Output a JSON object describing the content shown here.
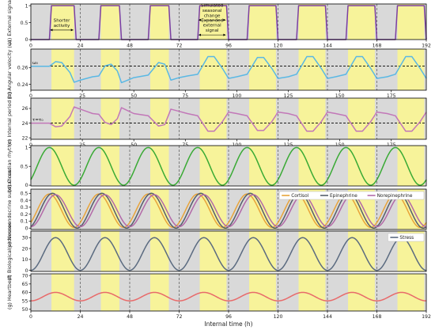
{
  "chart_data": [
    {
      "id": "a",
      "type": "line",
      "ylabel": "(a) External signal",
      "yticks": [
        0,
        0.5,
        1
      ],
      "ylim": [
        0,
        1.05
      ],
      "x_axis": "top",
      "xticks": [
        0,
        24,
        48,
        72,
        96,
        120,
        144,
        168,
        192
      ],
      "series": [
        {
          "values_description": "square wave",
          "color": "#7b3fa0",
          "points": [
            [
              0,
              0
            ],
            [
              9,
              0
            ],
            [
              10,
              1
            ],
            [
              21,
              1
            ],
            [
              22,
              0
            ],
            [
              33,
              0
            ],
            [
              34,
              1
            ],
            [
              43,
              1
            ],
            [
              44,
              0
            ],
            [
              57,
              0
            ],
            [
              58,
              1
            ],
            [
              67,
              1
            ],
            [
              68,
              0
            ],
            [
              81,
              0
            ],
            [
              82,
              1
            ],
            [
              95,
              1
            ],
            [
              96,
              0
            ],
            [
              105,
              0
            ],
            [
              106,
              1
            ],
            [
              119,
              1
            ],
            [
              120,
              0
            ],
            [
              129,
              0
            ],
            [
              130,
              1
            ],
            [
              143,
              1
            ],
            [
              144,
              0
            ],
            [
              153,
              0
            ],
            [
              154,
              1
            ],
            [
              167,
              1
            ],
            [
              168,
              0
            ],
            [
              177,
              0
            ],
            [
              178,
              1
            ],
            [
              191,
              1
            ],
            [
              192,
              0
            ]
          ]
        }
      ],
      "annotations": [
        {
          "text": [
            "Shorter",
            "activity"
          ],
          "x_range": [
            9,
            21
          ],
          "y": 0.45
        },
        {
          "text": [
            "Simulated",
            "seasonal",
            "change"
          ],
          "x_range": [
            81,
            95
          ],
          "y": 0.82
        },
        {
          "text": [
            "Expanded",
            "external",
            "signal"
          ],
          "x_range": [
            81,
            95
          ],
          "y": 0.38
        }
      ]
    },
    {
      "id": "b",
      "type": "line",
      "ylabel": "(b) Angular velocity (ω)",
      "yticks": [
        0.24,
        0.26
      ],
      "ylim": [
        0.233,
        0.282
      ],
      "x_axis": "bottom",
      "xticks": [
        0,
        25,
        50,
        75,
        100,
        125,
        150,
        175
      ],
      "ref_line": {
        "label": "ω₀",
        "value": 0.2617
      },
      "series": [
        {
          "color": "#5ab8e4",
          "points": [
            [
              0,
              0.2615
            ],
            [
              9,
              0.2615
            ],
            [
              12,
              0.267
            ],
            [
              15,
              0.266
            ],
            [
              19,
              0.254
            ],
            [
              21,
              0.2425
            ],
            [
              24,
              0.245
            ],
            [
              27,
              0.247
            ],
            [
              30,
              0.249
            ],
            [
              33,
              0.25
            ],
            [
              36,
              0.262
            ],
            [
              39,
              0.264
            ],
            [
              42,
              0.256
            ],
            [
              44,
              0.242
            ],
            [
              47,
              0.245
            ],
            [
              50,
              0.248
            ],
            [
              57,
              0.251
            ],
            [
              62,
              0.266
            ],
            [
              65,
              0.264
            ],
            [
              68,
              0.245
            ],
            [
              72,
              0.248
            ],
            [
              76,
              0.25
            ],
            [
              81,
              0.252
            ],
            [
              86,
              0.273
            ],
            [
              89,
              0.273
            ],
            [
              93,
              0.259
            ],
            [
              96,
              0.247
            ],
            [
              100,
              0.249
            ],
            [
              105,
              0.252
            ],
            [
              110,
              0.272
            ],
            [
              113,
              0.272
            ],
            [
              117,
              0.259
            ],
            [
              120,
              0.247
            ],
            [
              125,
              0.249
            ],
            [
              129,
              0.252
            ],
            [
              134,
              0.273
            ],
            [
              137,
              0.273
            ],
            [
              141,
              0.259
            ],
            [
              144,
              0.247
            ],
            [
              148,
              0.249
            ],
            [
              153,
              0.252
            ],
            [
              158,
              0.273
            ],
            [
              161,
              0.273
            ],
            [
              165,
              0.259
            ],
            [
              168,
              0.247
            ],
            [
              173,
              0.249
            ],
            [
              177,
              0.252
            ],
            [
              182,
              0.273
            ],
            [
              185,
              0.273
            ],
            [
              189,
              0.259
            ],
            [
              192,
              0.247
            ]
          ]
        }
      ]
    },
    {
      "id": "c",
      "type": "line",
      "ylabel": "(c) Internal period (τ)",
      "yticks": [
        22,
        24,
        26
      ],
      "ylim": [
        21.8,
        27.4
      ],
      "x_axis": "bottom",
      "xticks": [
        0,
        25,
        50,
        75,
        100,
        125,
        150,
        175
      ],
      "ref_line": {
        "label": "τ=τ₀",
        "value": 24
      },
      "series": [
        {
          "color": "#c277b8",
          "points": [
            [
              0,
              24
            ],
            [
              9,
              24
            ],
            [
              12,
              23.5
            ],
            [
              15,
              23.6
            ],
            [
              19,
              24.9
            ],
            [
              21,
              26.2
            ],
            [
              24,
              25.9
            ],
            [
              27,
              25.6
            ],
            [
              30,
              25.3
            ],
            [
              33,
              25.2
            ],
            [
              36,
              24.1
            ],
            [
              39,
              23.8
            ],
            [
              42,
              24.6
            ],
            [
              44,
              26.1
            ],
            [
              47,
              25.7
            ],
            [
              50,
              25.3
            ],
            [
              57,
              25
            ],
            [
              62,
              23.6
            ],
            [
              65,
              23.8
            ],
            [
              68,
              25.9
            ],
            [
              72,
              25.6
            ],
            [
              76,
              25.3
            ],
            [
              81,
              25
            ],
            [
              86,
              22.9
            ],
            [
              89,
              22.9
            ],
            [
              93,
              24.2
            ],
            [
              96,
              25.5
            ],
            [
              100,
              25.3
            ],
            [
              105,
              25
            ],
            [
              110,
              23
            ],
            [
              113,
              23
            ],
            [
              117,
              24.2
            ],
            [
              120,
              25.5
            ],
            [
              125,
              25.3
            ],
            [
              129,
              25
            ],
            [
              134,
              22.9
            ],
            [
              137,
              22.9
            ],
            [
              141,
              24.2
            ],
            [
              144,
              25.5
            ],
            [
              148,
              25.3
            ],
            [
              153,
              25
            ],
            [
              158,
              22.9
            ],
            [
              161,
              22.9
            ],
            [
              165,
              24.2
            ],
            [
              168,
              25.5
            ],
            [
              173,
              25.3
            ],
            [
              177,
              25
            ],
            [
              182,
              22.9
            ],
            [
              185,
              22.9
            ],
            [
              189,
              24.2
            ],
            [
              192,
              25.5
            ]
          ]
        }
      ]
    },
    {
      "id": "d",
      "type": "line",
      "ylabel": "(d) Circadian rhythm",
      "yticks": [
        0,
        0.5,
        1
      ],
      "ylim": [
        -0.02,
        1.05
      ],
      "x_axis": "none",
      "series": [
        {
          "color": "#3aaa35",
          "wave": {
            "period": 24,
            "phase_peak": 9,
            "amplitude": 0.5,
            "offset": 0.5
          }
        }
      ]
    },
    {
      "id": "e",
      "type": "line",
      "ylabel": "(e) Neuroendocrine substances",
      "yticks": [
        0,
        0.1,
        0.2,
        0.3,
        0.4,
        0.5
      ],
      "ylim": [
        -0.02,
        0.56
      ],
      "x_axis": "none",
      "legend": {
        "placement": "top-right",
        "entries": [
          "Cortisol",
          "Epinephrine",
          "Norepinephrine"
        ]
      },
      "series": [
        {
          "name": "Cortisol",
          "color": "#e8a43a",
          "wave": {
            "period": 24,
            "phase_peak": 9,
            "amplitude": 0.24,
            "offset": 0.25
          }
        },
        {
          "name": "Epinephrine",
          "color": "#555e6b",
          "wave": {
            "period": 24,
            "phase_peak": 10.5,
            "amplitude": 0.25,
            "offset": 0.25
          }
        },
        {
          "name": "Norepinephrine",
          "color": "#b36aa8",
          "wave": {
            "period": 24,
            "phase_peak": 12,
            "amplitude": 0.23,
            "offset": 0.25
          }
        }
      ]
    },
    {
      "id": "f",
      "type": "line",
      "ylabel": "(f) Biological processes",
      "yticks": [
        0,
        10,
        20,
        30
      ],
      "ylim": [
        -1,
        36
      ],
      "x_axis": "none",
      "legend": {
        "placement": "top-right",
        "entries": [
          "Stress"
        ]
      },
      "series": [
        {
          "name": "Stress",
          "color": "#5b6b80",
          "wave": {
            "period": 24,
            "phase_peak": 12,
            "amplitude": 15,
            "offset": 15
          }
        }
      ]
    },
    {
      "id": "g",
      "type": "line",
      "ylabel": "(g) Heartbeat",
      "yticks": [
        50,
        55,
        60,
        65,
        70
      ],
      "ylim": [
        49,
        71
      ],
      "x_axis": "bottom",
      "xlabel": "Internal time (h)",
      "xticks": [
        0,
        24,
        48,
        72,
        96,
        120,
        144,
        168,
        192
      ],
      "series": [
        {
          "color": "#e86a6a",
          "wave": {
            "period": 24,
            "phase_peak": 12,
            "amplitude": 2.5,
            "offset": 57.5
          }
        }
      ]
    }
  ],
  "background": {
    "grey": "#d9d9d9",
    "yellow": "#f7f39a",
    "light_intervals": [
      [
        10,
        21
      ],
      [
        34,
        43
      ],
      [
        58,
        67
      ],
      [
        82,
        95
      ],
      [
        106,
        119
      ],
      [
        130,
        143
      ],
      [
        154,
        167
      ],
      [
        178,
        191
      ]
    ],
    "dashed_lines": [
      24,
      48,
      72,
      96,
      120,
      144,
      168,
      192
    ]
  },
  "xlim": [
    0,
    192
  ]
}
